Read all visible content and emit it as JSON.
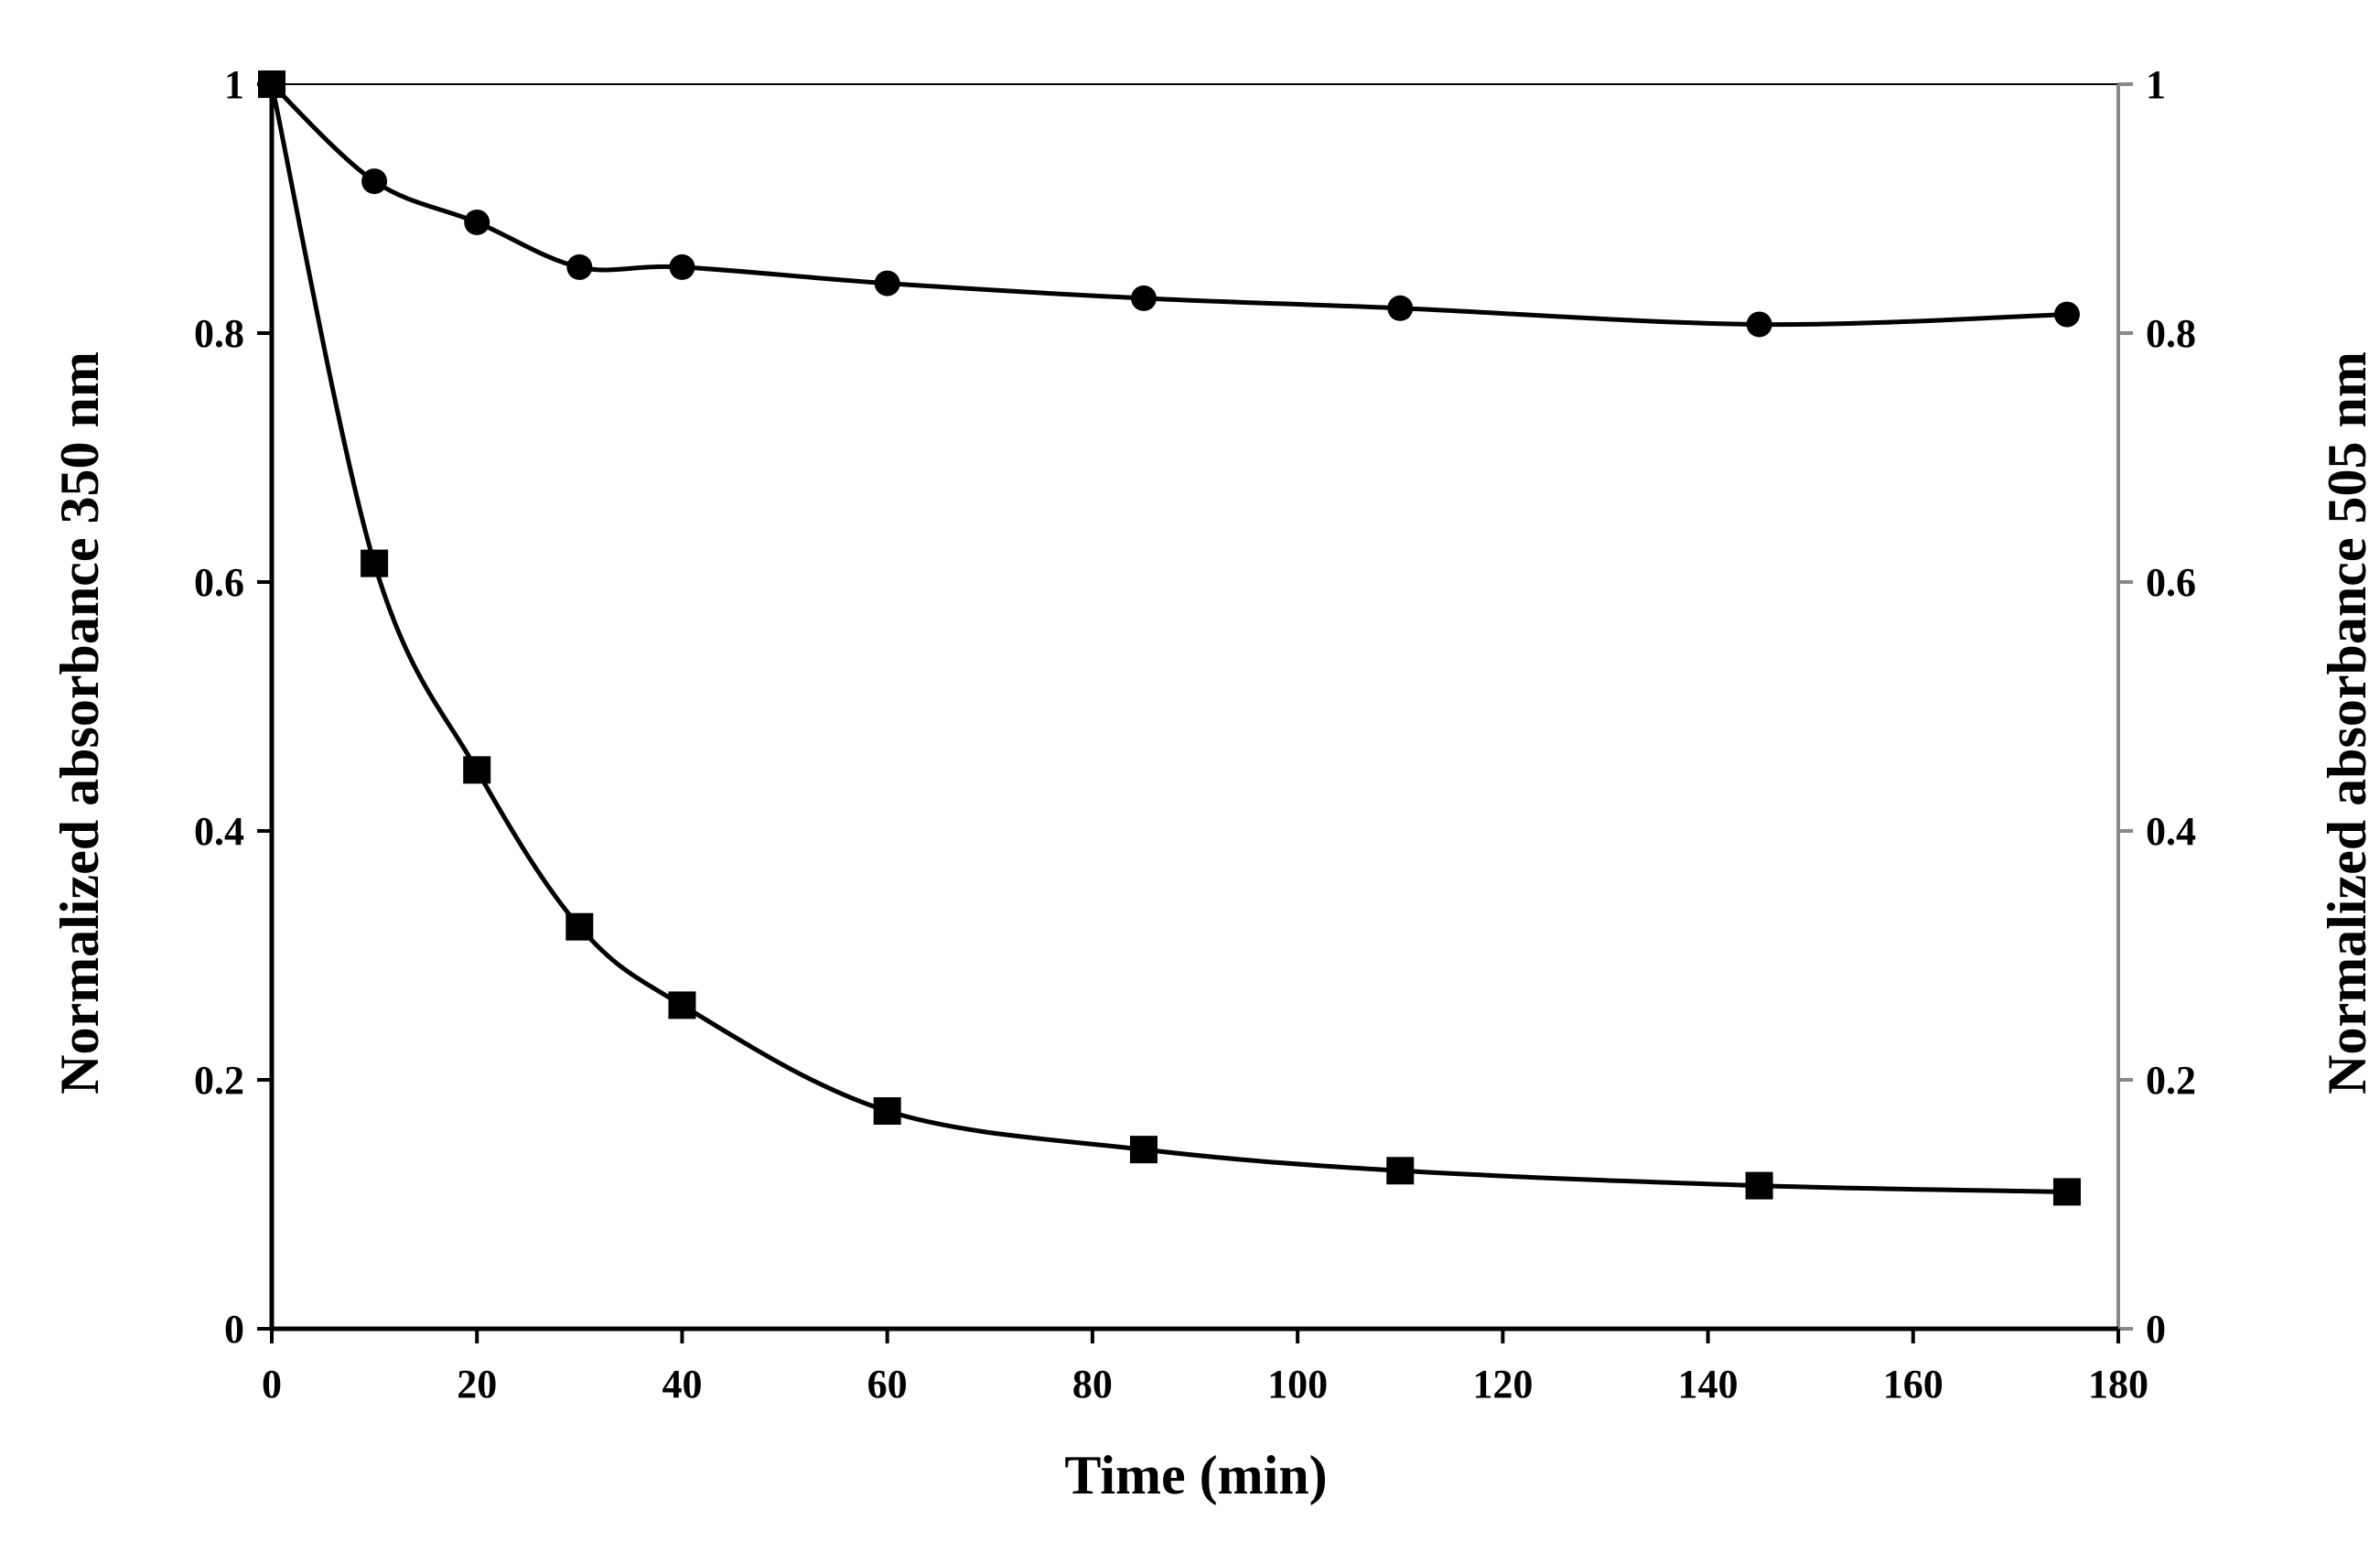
{
  "chart_data": {
    "type": "line",
    "title": "",
    "xlabel": "Time (min)",
    "ylabel": "Normalized absorbance 350 nm",
    "y2label": "Normalized absorbance 505 nm",
    "xlim": [
      0,
      180
    ],
    "ylim": [
      0,
      1
    ],
    "y2lim": [
      0,
      1
    ],
    "x_ticks": [
      "0",
      "20",
      "40",
      "60",
      "80",
      "100",
      "120",
      "140",
      "160",
      "180"
    ],
    "y_ticks": [
      "0",
      "0.2",
      "0.4",
      "0.6",
      "0.8",
      "1"
    ],
    "y2_ticks": [
      "0",
      "0.2",
      "0.4",
      "0.6",
      "0.8",
      "1"
    ],
    "grid": false,
    "series": [
      {
        "name": "350 nm",
        "marker": "square",
        "axis": "left",
        "x": [
          0,
          10,
          20,
          30,
          40,
          60,
          85,
          110,
          145,
          175
        ],
        "values": [
          1.0,
          0.615,
          0.449,
          0.323,
          0.26,
          0.175,
          0.144,
          0.127,
          0.115,
          0.11
        ]
      },
      {
        "name": "505 nm",
        "marker": "circle",
        "axis": "right",
        "x": [
          0,
          10,
          20,
          30,
          40,
          60,
          85,
          110,
          145,
          175
        ],
        "values": [
          1.0,
          0.922,
          0.889,
          0.853,
          0.853,
          0.84,
          0.828,
          0.82,
          0.807,
          0.815
        ]
      }
    ],
    "colors": {
      "axis": "#000000",
      "right_axis": "#888888",
      "line": "#000000"
    }
  }
}
